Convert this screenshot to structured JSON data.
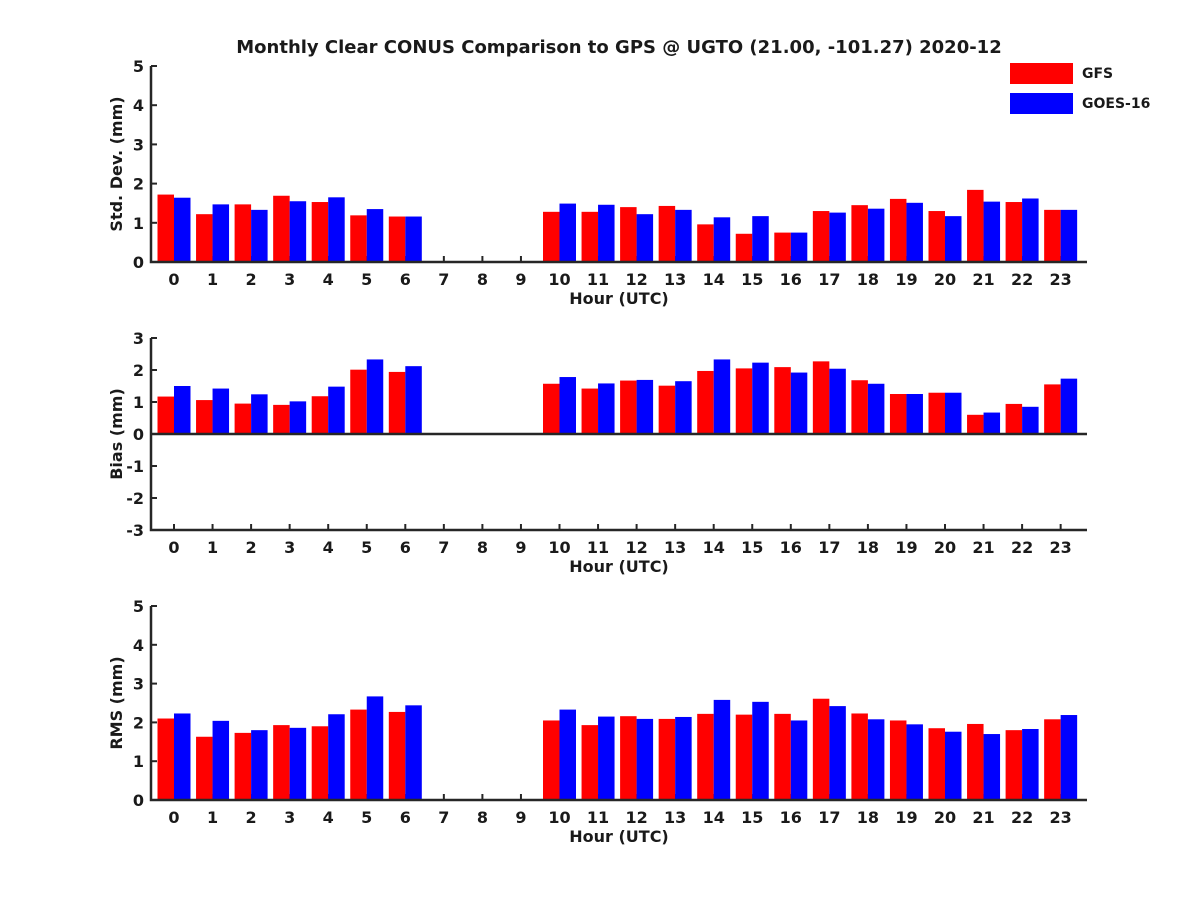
{
  "figure": {
    "title": "Monthly Clear CONUS Comparison to GPS @ UGTO (21.00, -101.27) 2020-12"
  },
  "legend": {
    "position": "top-right",
    "items": [
      {
        "label": "GFS",
        "color": "#ff0000"
      },
      {
        "label": "GOES-16",
        "color": "#0000ff"
      }
    ]
  },
  "chart_data": [
    {
      "type": "bar",
      "name": "std-dev",
      "ylabel": "Std. Dev. (mm)",
      "xlabel": "Hour (UTC)",
      "ylim": [
        0,
        5
      ],
      "yticks": [
        0,
        1,
        2,
        3,
        4,
        5
      ],
      "grid": false,
      "categories": [
        "0",
        "1",
        "2",
        "3",
        "4",
        "5",
        "6",
        "7",
        "8",
        "9",
        "10",
        "11",
        "12",
        "13",
        "14",
        "15",
        "16",
        "17",
        "18",
        "19",
        "20",
        "21",
        "22",
        "23"
      ],
      "series": [
        {
          "name": "GFS",
          "color": "#ff0000",
          "values": [
            1.72,
            1.22,
            1.47,
            1.69,
            1.53,
            1.19,
            1.16,
            null,
            null,
            null,
            1.28,
            1.28,
            1.4,
            1.43,
            0.96,
            0.72,
            0.75,
            1.3,
            1.45,
            1.61,
            1.3,
            1.84,
            1.53,
            1.33
          ]
        },
        {
          "name": "GOES-16",
          "color": "#0000ff",
          "values": [
            1.64,
            1.47,
            1.33,
            1.55,
            1.65,
            1.35,
            1.16,
            null,
            null,
            null,
            1.49,
            1.46,
            1.22,
            1.33,
            1.14,
            1.17,
            0.75,
            1.26,
            1.36,
            1.51,
            1.17,
            1.54,
            1.62,
            1.33
          ]
        }
      ]
    },
    {
      "type": "bar",
      "name": "bias",
      "ylabel": "Bias (mm)",
      "xlabel": "Hour (UTC)",
      "ylim": [
        -3,
        3
      ],
      "yticks": [
        -3,
        -2,
        -1,
        0,
        1,
        2,
        3
      ],
      "grid": false,
      "categories": [
        "0",
        "1",
        "2",
        "3",
        "4",
        "5",
        "6",
        "7",
        "8",
        "9",
        "10",
        "11",
        "12",
        "13",
        "14",
        "15",
        "16",
        "17",
        "18",
        "19",
        "20",
        "21",
        "22",
        "23"
      ],
      "series": [
        {
          "name": "GFS",
          "color": "#ff0000",
          "values": [
            1.17,
            1.06,
            0.95,
            0.91,
            1.18,
            2.01,
            1.94,
            null,
            null,
            null,
            1.57,
            1.42,
            1.67,
            1.51,
            1.97,
            2.05,
            2.09,
            2.27,
            1.68,
            1.25,
            1.29,
            0.6,
            0.94,
            1.55
          ]
        },
        {
          "name": "GOES-16",
          "color": "#0000ff",
          "values": [
            1.5,
            1.42,
            1.24,
            1.02,
            1.48,
            2.33,
            2.12,
            null,
            null,
            null,
            1.78,
            1.58,
            1.69,
            1.65,
            2.33,
            2.23,
            1.92,
            2.04,
            1.57,
            1.25,
            1.29,
            0.67,
            0.85,
            1.73
          ]
        }
      ]
    },
    {
      "type": "bar",
      "name": "rms",
      "ylabel": "RMS (mm)",
      "xlabel": "Hour (UTC)",
      "ylim": [
        0,
        5
      ],
      "yticks": [
        0,
        1,
        2,
        3,
        4,
        5
      ],
      "grid": false,
      "categories": [
        "0",
        "1",
        "2",
        "3",
        "4",
        "5",
        "6",
        "7",
        "8",
        "9",
        "10",
        "11",
        "12",
        "13",
        "14",
        "15",
        "16",
        "17",
        "18",
        "19",
        "20",
        "21",
        "22",
        "23"
      ],
      "series": [
        {
          "name": "GFS",
          "color": "#ff0000",
          "values": [
            2.1,
            1.63,
            1.73,
            1.93,
            1.9,
            2.33,
            2.27,
            null,
            null,
            null,
            2.05,
            1.93,
            2.16,
            2.09,
            2.22,
            2.2,
            2.22,
            2.61,
            2.23,
            2.05,
            1.85,
            1.96,
            1.8,
            2.08
          ]
        },
        {
          "name": "GOES-16",
          "color": "#0000ff",
          "values": [
            2.23,
            2.04,
            1.8,
            1.86,
            2.21,
            2.67,
            2.44,
            null,
            null,
            null,
            2.33,
            2.15,
            2.09,
            2.14,
            2.58,
            2.53,
            2.05,
            2.42,
            2.08,
            1.95,
            1.76,
            1.7,
            1.83,
            2.19
          ]
        }
      ]
    }
  ]
}
